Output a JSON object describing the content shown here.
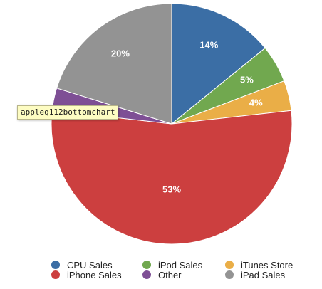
{
  "tooltip": {
    "text": "appleq112bottomchart"
  },
  "chart_data": {
    "type": "pie",
    "title": "",
    "slices": [
      {
        "name": "CPU Sales",
        "value": 14,
        "label": "14%",
        "color": "#3b6ea5"
      },
      {
        "name": "iPod Sales",
        "value": 5,
        "label": "5%",
        "color": "#71a84f"
      },
      {
        "name": "iTunes Store",
        "value": 4,
        "label": "4%",
        "color": "#eaae47"
      },
      {
        "name": "iPhone Sales",
        "value": 53,
        "label": "53%",
        "color": "#cc3f3f"
      },
      {
        "name": "Other",
        "value": 3,
        "label": "",
        "color": "#7e4f95"
      },
      {
        "name": "iPad Sales",
        "value": 20,
        "label": "20%",
        "color": "#939393"
      }
    ],
    "start_angle_deg": 0,
    "direction": "clockwise",
    "legend_position": "bottom",
    "legend_order": [
      "CPU Sales",
      "iPod Sales",
      "iTunes Store",
      "iPhone Sales",
      "Other",
      "iPad Sales"
    ]
  }
}
